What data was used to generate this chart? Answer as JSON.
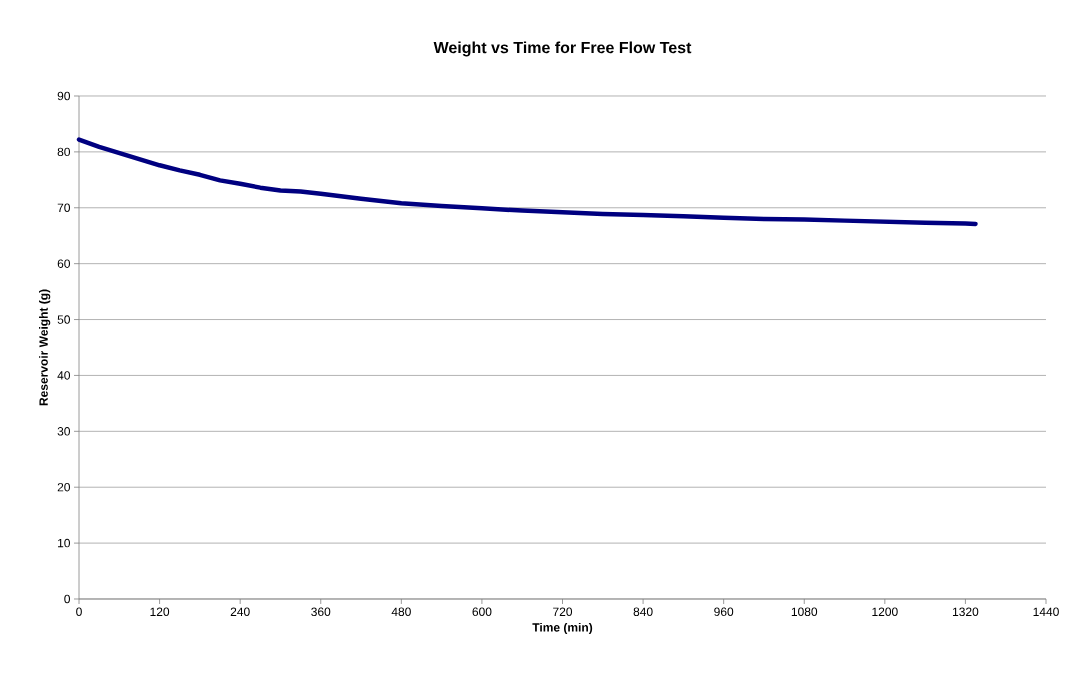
{
  "chart_data": {
    "type": "line",
    "title": "Weight vs Time for Free Flow Test",
    "xlabel": "Time (min)",
    "ylabel": "Reservoir Weight (g)",
    "x": [
      0,
      30,
      60,
      90,
      120,
      150,
      180,
      210,
      240,
      270,
      300,
      330,
      360,
      420,
      480,
      540,
      600,
      660,
      720,
      780,
      840,
      900,
      960,
      1020,
      1080,
      1140,
      1200,
      1260,
      1320,
      1335
    ],
    "series": [
      {
        "color": "#000080",
        "values": [
          82.2,
          80.9,
          79.8,
          78.7,
          77.6,
          76.7,
          75.9,
          74.9,
          74.3,
          73.6,
          73.1,
          72.9,
          72.5,
          71.6,
          70.8,
          70.3,
          69.9,
          69.5,
          69.2,
          68.9,
          68.7,
          68.5,
          68.2,
          68.0,
          67.9,
          67.7,
          67.5,
          67.3,
          67.2,
          67.1
        ]
      }
    ],
    "xlim": [
      0,
      1440
    ],
    "xticks": [
      0,
      120,
      240,
      360,
      480,
      600,
      720,
      840,
      960,
      1080,
      1200,
      1320,
      1440
    ],
    "ylim": [
      0,
      90
    ],
    "yticks": [
      0,
      10,
      20,
      30,
      40,
      50,
      60,
      70,
      80,
      90
    ],
    "grid": "y",
    "marker": "none",
    "line_style": "solid"
  }
}
